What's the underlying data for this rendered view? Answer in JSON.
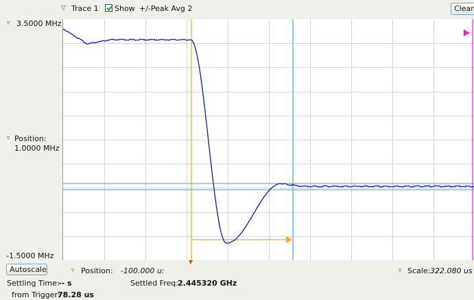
{
  "toolbar": {
    "trace_label": "Trace 1",
    "show_label": "Show",
    "detection_label": "+/-Peak Avg 2",
    "clear_label": "Clear"
  },
  "yaxis": {
    "top_label": "3.5000 MHz",
    "position_label": "Position:",
    "position_value": "1.0000 MHz",
    "bottom_label": "-1.5000 MHz"
  },
  "xaxis": {
    "autoscale_label": "Autoscale",
    "position_label": "Position:",
    "position_value": "-100.000 u:",
    "scale_label": "Scale:",
    "scale_value": "322.080 us"
  },
  "readouts": {
    "settling_time_label": "Settling Time:",
    "settling_time_value": "-- s",
    "settled_freq_label": "Settled Freq:",
    "settled_freq_value": "2.445320 GHz",
    "from_trigger_label": "from Trigger:",
    "from_trigger_value": "78.28 us"
  },
  "colors": {
    "trace": "#1f2a9c",
    "cursor_orange": "#f5a623",
    "cursor_blue": "#4a9fd8",
    "marker_magenta": "#e020e0",
    "grid": "#d0d0d0"
  }
}
